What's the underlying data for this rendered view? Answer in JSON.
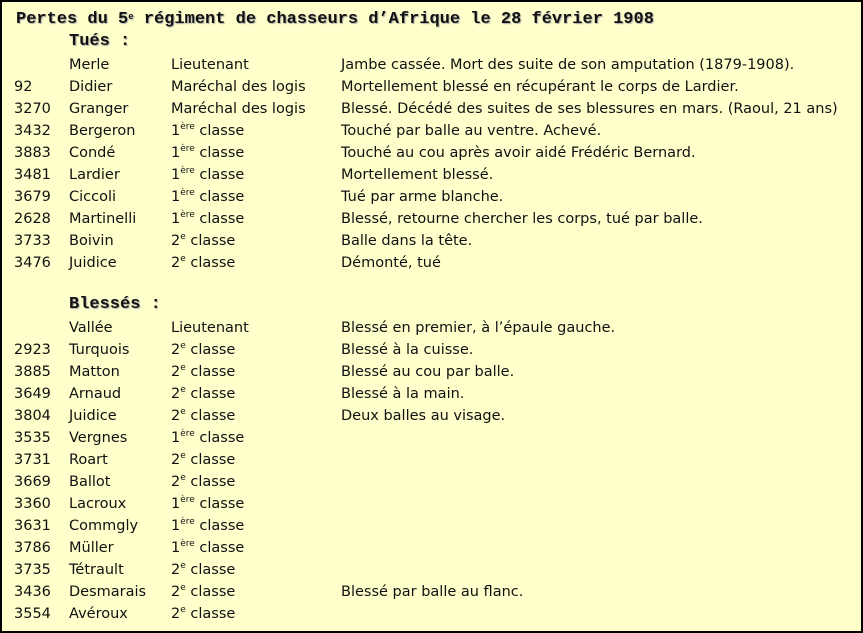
{
  "title": {
    "pre": "Pertes du 5",
    "sup": "e",
    "post": " régiment de chasseurs d’Afrique le 28 février 1908"
  },
  "sections": [
    {
      "heading": "Tués :",
      "rows": [
        {
          "num": "",
          "name": "Merle",
          "rank": {
            "base": "Lieutenant",
            "sup": "",
            "rest": ""
          },
          "note": "Jambe cassée. Mort des suite de son amputation (1879-1908)."
        },
        {
          "num": "92",
          "name": "Didier",
          "rank": {
            "base": "Maréchal des logis",
            "sup": "",
            "rest": ""
          },
          "note": "Mortellement blessé en récupérant le corps de Lardier."
        },
        {
          "num": "3270",
          "name": "Granger",
          "rank": {
            "base": "Maréchal des logis",
            "sup": "",
            "rest": ""
          },
          "note": "Blessé. Décédé des suites de ses blessures en mars. (Raoul, 21 ans)"
        },
        {
          "num": "3432",
          "name": "Bergeron",
          "rank": {
            "base": "1",
            "sup": "ère",
            "rest": " classe"
          },
          "note": "Touché par balle au ventre. Achevé."
        },
        {
          "num": "3883",
          "name": "Condé",
          "rank": {
            "base": "1",
            "sup": "ère",
            "rest": " classe"
          },
          "note": "Touché au cou après avoir aidé Frédéric Bernard."
        },
        {
          "num": "3481",
          "name": "Lardier",
          "rank": {
            "base": "1",
            "sup": "ère",
            "rest": " classe"
          },
          "note": "Mortellement blessé."
        },
        {
          "num": "3679",
          "name": "Ciccoli",
          "rank": {
            "base": "1",
            "sup": "ère",
            "rest": " classe"
          },
          "note": "Tué par arme blanche."
        },
        {
          "num": "2628",
          "name": "Martinelli",
          "rank": {
            "base": "1",
            "sup": "ère",
            "rest": " classe"
          },
          "note": "Blessé, retourne chercher les corps, tué par balle."
        },
        {
          "num": "3733",
          "name": "Boivin",
          "rank": {
            "base": "2",
            "sup": "e",
            "rest": " classe"
          },
          "note": "Balle dans la tête."
        },
        {
          "num": "3476",
          "name": "Juidice",
          "rank": {
            "base": "2",
            "sup": "e",
            "rest": " classe"
          },
          "note": "Démonté, tué"
        }
      ]
    },
    {
      "heading": "Blessés :",
      "rows": [
        {
          "num": "",
          "name": "Vallée",
          "rank": {
            "base": "Lieutenant",
            "sup": "",
            "rest": ""
          },
          "note": "Blessé en premier, à l’épaule gauche."
        },
        {
          "num": "2923",
          "name": "Turquois",
          "rank": {
            "base": "2",
            "sup": "e",
            "rest": " classe"
          },
          "note": "Blessé à la cuisse."
        },
        {
          "num": "3885",
          "name": "Matton",
          "rank": {
            "base": "2",
            "sup": "e",
            "rest": " classe"
          },
          "note": "Blessé au cou par balle."
        },
        {
          "num": "3649",
          "name": "Arnaud",
          "rank": {
            "base": "2",
            "sup": "e",
            "rest": " classe"
          },
          "note": "Blessé à la main."
        },
        {
          "num": "3804",
          "name": "Juidice",
          "rank": {
            "base": "2",
            "sup": "e",
            "rest": " classe"
          },
          "note": "Deux balles au visage."
        },
        {
          "num": "3535",
          "name": "Vergnes",
          "rank": {
            "base": "1",
            "sup": "ère",
            "rest": " classe"
          },
          "note": ""
        },
        {
          "num": "3731",
          "name": "Roart",
          "rank": {
            "base": "2",
            "sup": "e",
            "rest": " classe"
          },
          "note": ""
        },
        {
          "num": "3669",
          "name": "Ballot",
          "rank": {
            "base": "2",
            "sup": "e",
            "rest": " classe"
          },
          "note": ""
        },
        {
          "num": "3360",
          "name": "Lacroux",
          "rank": {
            "base": "1",
            "sup": "ère",
            "rest": " classe"
          },
          "note": ""
        },
        {
          "num": "3631",
          "name": "Commgly",
          "rank": {
            "base": "1",
            "sup": "ère",
            "rest": " classe"
          },
          "note": ""
        },
        {
          "num": "3786",
          "name": "Müller",
          "rank": {
            "base": "1",
            "sup": "ère",
            "rest": " classe"
          },
          "note": ""
        },
        {
          "num": "3735",
          "name": "Tétrault",
          "rank": {
            "base": "2",
            "sup": "e",
            "rest": " classe"
          },
          "note": ""
        },
        {
          "num": "3436",
          "name": "Desmarais",
          "rank": {
            "base": "2",
            "sup": "e",
            "rest": " classe"
          },
          "note": "Blessé par balle au flanc."
        },
        {
          "num": "3554",
          "name": "Avéroux",
          "rank": {
            "base": "2",
            "sup": "e",
            "rest": " classe"
          },
          "note": ""
        }
      ]
    }
  ]
}
